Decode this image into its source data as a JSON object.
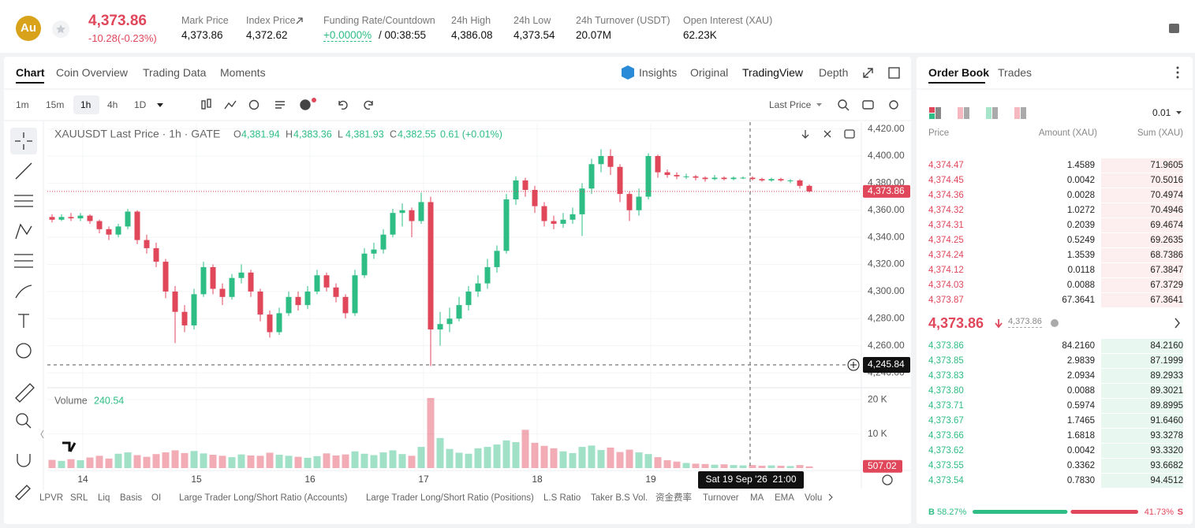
{
  "header": {
    "icon": "Au",
    "price": "4,373.86",
    "change": "-10.28(-0.23%)",
    "stats": [
      {
        "label": "Mark Price",
        "value": "4,373.86"
      },
      {
        "label": "Index Price",
        "value": "4,372.62"
      },
      {
        "label": "Funding Rate/Countdown",
        "value": "+0.0000%",
        "extra": "/ 00:38:55"
      },
      {
        "label": "24h High",
        "value": "4,386.08"
      },
      {
        "label": "24h Low",
        "value": "4,373.54"
      },
      {
        "label": "24h Turnover (USDT)",
        "value": "20.07M"
      },
      {
        "label": "Open Interest (XAU)",
        "value": "62.23K"
      }
    ]
  },
  "chart_tabs": [
    "Chart",
    "Coin Overview",
    "Trading Data",
    "Moments"
  ],
  "view_tabs": [
    "Insights",
    "Original",
    "TradingView",
    "Depth"
  ],
  "intervals": [
    "1m",
    "15m",
    "1h",
    "4h",
    "1D"
  ],
  "price_source": "Last Price",
  "indicators": [
    "LPVR",
    "SRL",
    "Liq",
    "Basis",
    "OI",
    "Large Trader Long/Short Ratio (Accounts)",
    "Large Trader Long/Short Ratio (Positions)",
    "L.S Ratio",
    "Taker B.S Vol.",
    "资金费率",
    "Turnover",
    "MA",
    "EMA",
    "Volu"
  ],
  "chart_data": {
    "type": "candlestick",
    "title": "XAUUSDT Last Price · 1h · GATE",
    "ohlc": [
      [
        "O",
        "4,381.94"
      ],
      [
        "H",
        "4,383.36"
      ],
      [
        "L",
        "4,381.93"
      ],
      [
        "C",
        "4,382.55"
      ]
    ],
    "change": "0.61 (+0.01%)",
    "up_color": "#2ebd85",
    "down_color": "#e0475b",
    "candles": [
      [
        4355,
        4357,
        4351,
        4353
      ],
      [
        4353,
        4357,
        4352,
        4355
      ],
      [
        4355,
        4358,
        4352,
        4354
      ],
      [
        4354,
        4358,
        4352,
        4356
      ],
      [
        4356,
        4357,
        4350,
        4352
      ],
      [
        4352,
        4353,
        4343,
        4346
      ],
      [
        4346,
        4348,
        4338,
        4342
      ],
      [
        4342,
        4350,
        4340,
        4348
      ],
      [
        4348,
        4361,
        4346,
        4359
      ],
      [
        4359,
        4360,
        4335,
        4338
      ],
      [
        4338,
        4342,
        4328,
        4332
      ],
      [
        4332,
        4336,
        4318,
        4322
      ],
      [
        4322,
        4324,
        4295,
        4300
      ],
      [
        4300,
        4304,
        4262,
        4285
      ],
      [
        4285,
        4290,
        4270,
        4275
      ],
      [
        4275,
        4302,
        4272,
        4298
      ],
      [
        4298,
        4322,
        4296,
        4318
      ],
      [
        4318,
        4320,
        4298,
        4302
      ],
      [
        4302,
        4306,
        4290,
        4296
      ],
      [
        4296,
        4313,
        4294,
        4310
      ],
      [
        4310,
        4320,
        4306,
        4314
      ],
      [
        4314,
        4316,
        4296,
        4300
      ],
      [
        4300,
        4302,
        4278,
        4283
      ],
      [
        4283,
        4286,
        4266,
        4270
      ],
      [
        4270,
        4288,
        4268,
        4284
      ],
      [
        4284,
        4300,
        4282,
        4296
      ],
      [
        4296,
        4300,
        4286,
        4290
      ],
      [
        4290,
        4304,
        4287,
        4300
      ],
      [
        4300,
        4316,
        4298,
        4312
      ],
      [
        4312,
        4314,
        4300,
        4303
      ],
      [
        4303,
        4306,
        4292,
        4296
      ],
      [
        4296,
        4298,
        4280,
        4284
      ],
      [
        4284,
        4316,
        4282,
        4312
      ],
      [
        4312,
        4332,
        4310,
        4328
      ],
      [
        4328,
        4336,
        4324,
        4331
      ],
      [
        4331,
        4346,
        4328,
        4342
      ],
      [
        4342,
        4361,
        4340,
        4358
      ],
      [
        4358,
        4365,
        4348,
        4360
      ],
      [
        4360,
        4362,
        4340,
        4352
      ],
      [
        4352,
        4373,
        4350,
        4366
      ],
      [
        4366,
        4370,
        4245,
        4272
      ],
      [
        4272,
        4285,
        4260,
        4276
      ],
      [
        4276,
        4288,
        4270,
        4280
      ],
      [
        4280,
        4296,
        4278,
        4290
      ],
      [
        4290,
        4304,
        4286,
        4300
      ],
      [
        4300,
        4312,
        4296,
        4306
      ],
      [
        4306,
        4324,
        4302,
        4318
      ],
      [
        4318,
        4334,
        4314,
        4330
      ],
      [
        4330,
        4372,
        4328,
        4368
      ],
      [
        4368,
        4385,
        4364,
        4382
      ],
      [
        4382,
        4384,
        4370,
        4375
      ],
      [
        4375,
        4378,
        4358,
        4363
      ],
      [
        4363,
        4366,
        4348,
        4352
      ],
      [
        4352,
        4356,
        4346,
        4350
      ],
      [
        4350,
        4358,
        4347,
        4353
      ],
      [
        4353,
        4362,
        4350,
        4357
      ],
      [
        4357,
        4380,
        4341,
        4376
      ],
      [
        4376,
        4398,
        4372,
        4394
      ],
      [
        4394,
        4405,
        4388,
        4400
      ],
      [
        4400,
        4405,
        4386,
        4392
      ],
      [
        4392,
        4394,
        4366,
        4372
      ],
      [
        4372,
        4374,
        4352,
        4360
      ],
      [
        4360,
        4376,
        4356,
        4370
      ],
      [
        4370,
        4402,
        4368,
        4400
      ],
      [
        4400,
        4401,
        4384,
        4388
      ],
      [
        4388,
        4390,
        4384,
        4386
      ],
      [
        4386,
        4388,
        4383,
        4385
      ],
      [
        4385,
        4387,
        4383,
        4385
      ],
      [
        4385,
        4386,
        4382,
        4384
      ],
      [
        4384,
        4385,
        4381,
        4383
      ],
      [
        4383,
        4386,
        4382,
        4384
      ],
      [
        4384,
        4385,
        4382,
        4383
      ],
      [
        4383,
        4385,
        4382,
        4384
      ],
      [
        4384,
        4385,
        4383,
        4384
      ],
      [
        4384,
        4385,
        4382,
        4383
      ],
      [
        4383,
        4384,
        4381,
        4382
      ],
      [
        4382,
        4384,
        4381,
        4383
      ],
      [
        4383,
        4384,
        4381,
        4382
      ],
      [
        4382,
        4383,
        4380,
        4382
      ],
      [
        4382,
        4383,
        4376,
        4378
      ],
      [
        4378,
        4379,
        4373,
        4373.86
      ]
    ],
    "volume_label": "Volume",
    "volume_value": "240.54",
    "volumes": [
      2400,
      2100,
      2600,
      2300,
      3100,
      3600,
      2800,
      4200,
      4600,
      3800,
      3300,
      4100,
      4600,
      5200,
      4400,
      5000,
      4300,
      3900,
      3600,
      3200,
      4000,
      3700,
      3600,
      4500,
      3900,
      3600,
      3300,
      3000,
      3500,
      4300,
      3700,
      4000,
      4900,
      4200,
      3800,
      4600,
      5200,
      4100,
      3600,
      6200,
      20500,
      8800,
      5600,
      4500,
      4200,
      5800,
      6200,
      6900,
      8100,
      7600,
      11200,
      7400,
      6500,
      5800,
      4900,
      4400,
      6200,
      6600,
      5300,
      6000,
      4700,
      5400,
      4600,
      4100,
      3200,
      2300,
      1900,
      1500,
      1300,
      1200,
      1000,
      1100,
      900,
      800,
      900,
      700,
      800,
      700,
      600,
      900,
      507.02
    ],
    "volume_last_label": "507.02",
    "ylim": [
      4229,
      4425
    ],
    "yticks": [
      {
        "value": 4420,
        "label": "4,420.00"
      },
      {
        "value": 4400,
        "label": "4,400.00"
      },
      {
        "value": 4380,
        "label": "4,380.00"
      },
      {
        "value": 4360,
        "label": "4,360.00"
      },
      {
        "value": 4340,
        "label": "4,340.00"
      },
      {
        "value": 4320,
        "label": "4,320.00"
      },
      {
        "value": 4300,
        "label": "4,300.00"
      },
      {
        "value": 4280,
        "label": "4,280.00"
      },
      {
        "value": 4260,
        "label": "4,260.00"
      },
      {
        "value": 4240,
        "label": "4,240.00"
      }
    ],
    "vlim": [
      0,
      22800
    ],
    "vticks": [
      {
        "value": 10000,
        "label": "10 K"
      },
      {
        "value": 20000,
        "label": "20 K"
      }
    ],
    "xlim": [
      -0.5,
      85.5
    ],
    "xticks": [
      {
        "value": 3.25,
        "label": "14"
      },
      {
        "value": 15.25,
        "label": "15"
      },
      {
        "value": 27.25,
        "label": "16"
      },
      {
        "value": 39.25,
        "label": "17"
      },
      {
        "value": 51.25,
        "label": "18"
      },
      {
        "value": 63.25,
        "label": "19"
      }
    ],
    "grid": true,
    "last_price": {
      "value": 4373.86,
      "label": "4,373.86"
    },
    "crosshair": {
      "value": 4245.84,
      "label": "4,245.84",
      "x": 73.75,
      "time_label": "Sat 19 Sep '26  21:00"
    }
  },
  "order_book": {
    "tabs": [
      "Order Book",
      "Trades"
    ],
    "precision": "0.01",
    "columns": [
      "Price",
      "Amount (XAU)",
      "Sum (XAU)"
    ],
    "asks": [
      [
        "4,374.47",
        "1.4589",
        "71.9605"
      ],
      [
        "4,374.45",
        "0.0042",
        "70.5016"
      ],
      [
        "4,374.36",
        "0.0028",
        "70.4974"
      ],
      [
        "4,374.32",
        "1.0272",
        "70.4946"
      ],
      [
        "4,374.31",
        "0.2039",
        "69.4674"
      ],
      [
        "4,374.25",
        "0.5249",
        "69.2635"
      ],
      [
        "4,374.24",
        "1.3539",
        "68.7386"
      ],
      [
        "4,374.12",
        "0.0118",
        "67.3847"
      ],
      [
        "4,374.03",
        "0.0088",
        "67.3729"
      ],
      [
        "4,373.87",
        "67.3641",
        "67.3641"
      ]
    ],
    "last": "4,373.86",
    "mark": "4,373.86",
    "bids": [
      [
        "4,373.86",
        "84.2160",
        "84.2160"
      ],
      [
        "4,373.85",
        "2.9839",
        "87.1999"
      ],
      [
        "4,373.83",
        "2.0934",
        "89.2933"
      ],
      [
        "4,373.80",
        "0.0088",
        "89.3021"
      ],
      [
        "4,373.71",
        "0.5974",
        "89.8995"
      ],
      [
        "4,373.67",
        "1.7465",
        "91.6460"
      ],
      [
        "4,373.66",
        "1.6818",
        "93.3278"
      ],
      [
        "4,373.62",
        "0.0042",
        "93.3320"
      ],
      [
        "4,373.55",
        "0.3362",
        "93.6682"
      ],
      [
        "4,373.54",
        "0.7830",
        "94.4512"
      ]
    ],
    "buy_letter": "B",
    "buy_ratio": 58.27,
    "buy_ratio_label": "58.27%",
    "sell_ratio": 41.73,
    "sell_ratio_label": "41.73%",
    "sell_letter": "S"
  }
}
